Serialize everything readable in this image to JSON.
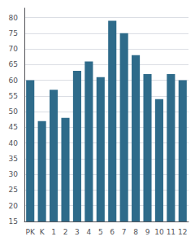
{
  "chart_data": {
    "type": "bar",
    "categories": [
      "PK",
      "K",
      "1",
      "2",
      "3",
      "4",
      "5",
      "6",
      "7",
      "8",
      "9",
      "10",
      "11",
      "12"
    ],
    "values": [
      60,
      47,
      57,
      48,
      63,
      66,
      61,
      79,
      75,
      68,
      62,
      54,
      62,
      60
    ],
    "color": "#2e6b8a",
    "ylim": [
      15,
      83
    ],
    "yticks": [
      15,
      20,
      25,
      30,
      35,
      40,
      45,
      50,
      55,
      60,
      65,
      70,
      75,
      80
    ],
    "grid": true
  }
}
